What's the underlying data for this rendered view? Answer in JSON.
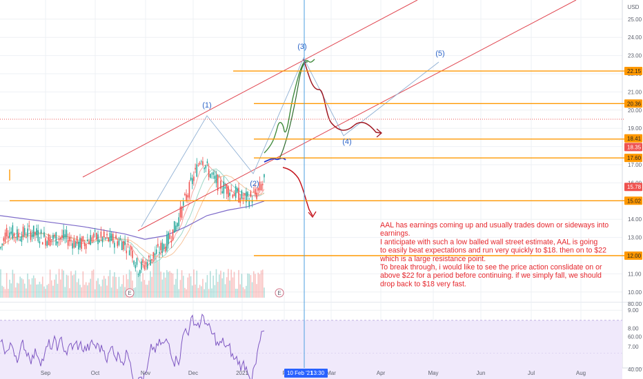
{
  "chart_data": {
    "type": "candlestick",
    "currency": "USD",
    "price_axis_ticks": [
      25,
      24,
      23,
      22,
      21,
      20,
      19,
      18,
      17,
      16,
      15,
      14,
      13,
      12,
      11,
      10,
      9,
      8,
      7
    ],
    "price_axis_tick_labels": [
      "25.00",
      "24.00",
      "23.00",
      "22.00",
      "21.00",
      "20.00",
      "19.00",
      "18.00",
      "17.00",
      "16.00",
      "15.00",
      "14.00",
      "13.00",
      "12.00",
      "11.00",
      "10.00",
      "9.00",
      "8.00",
      "7.00"
    ],
    "price_tags": [
      {
        "label": "22.15",
        "value": 22.15,
        "kind": "level"
      },
      {
        "label": "20.36",
        "value": 20.36,
        "kind": "level"
      },
      {
        "label": "18.41",
        "value": 18.41,
        "kind": "level"
      },
      {
        "label": "18.35",
        "value": 18.35,
        "kind": "last"
      },
      {
        "label": "17.60",
        "value": 17.6,
        "kind": "level"
      },
      {
        "label": "15.78",
        "value": 15.78,
        "kind": "last"
      },
      {
        "label": "15.02",
        "value": 15.02,
        "kind": "level"
      },
      {
        "label": "12.00",
        "value": 12.0,
        "kind": "level"
      }
    ],
    "horizontal_levels": [
      22.15,
      20.36,
      18.41,
      17.6,
      15.02,
      12.0
    ],
    "rsi_axis_ticks": [
      80,
      60,
      40
    ],
    "rsi_axis_tick_labels": [
      "80.00",
      "60.00",
      "40.00"
    ],
    "rsi_band": [
      70,
      30
    ],
    "x_axis_labels": [
      "Sep",
      "Oct",
      "Nov",
      "Dec",
      "2021",
      "F",
      "Mar",
      "Apr",
      "May",
      "Jun",
      "Jul",
      "Aug"
    ],
    "crosshair_date": "10 Feb '21",
    "crosshair_time": "13:30",
    "wave_labels": [
      "(1)",
      "(2)",
      "(3)",
      "(4)",
      "(5)"
    ],
    "earnings_markers": [
      "E",
      "E"
    ],
    "annotation": [
      "AAL has earnings coming up and usually trades down or sideways into",
      "earnings.",
      "I anticipate with such a low balled wall street estimate, AAL is going",
      "to easily beat expectations and run very quickly to $18. then on to $22",
      "which is a large resistance point.",
      "To break through, i would like to see the price action conslidate on or",
      "above $22 for a period before continuing. if we simply fall, we should",
      "drop back to $18 very fast."
    ],
    "colors": {
      "up": "#26a69a",
      "down": "#ef5350",
      "level_line": "#ff9800",
      "channel": "#e0454f",
      "wave_text": "#2a63c8",
      "note_text": "#e5262c",
      "crosshair": "#4a9fe0",
      "rsi_line": "#7e57c2",
      "rsi_band_fill": "#f0e9fb"
    }
  }
}
